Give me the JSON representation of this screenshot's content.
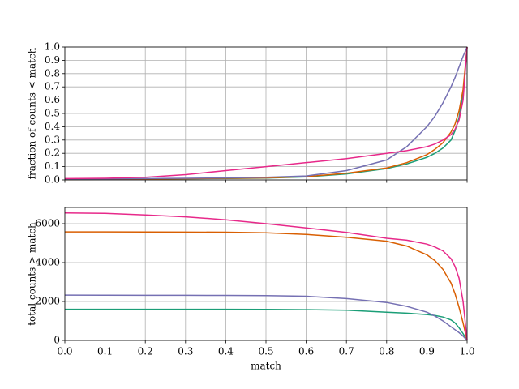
{
  "chart_data": [
    {
      "type": "line",
      "ylabel": "fraction of counts < match",
      "x": [
        0,
        0.1,
        0.2,
        0.3,
        0.4,
        0.5,
        0.6,
        0.7,
        0.8,
        0.85,
        0.9,
        0.92,
        0.94,
        0.96,
        0.97,
        0.98,
        0.99,
        1.0
      ],
      "series": [
        {
          "color": "#1b9e77",
          "values": [
            0.003,
            0.005,
            0.007,
            0.009,
            0.011,
            0.014,
            0.023,
            0.045,
            0.085,
            0.12,
            0.17,
            0.2,
            0.24,
            0.3,
            0.37,
            0.47,
            0.65,
            1.0
          ]
        },
        {
          "color": "#d95f02",
          "values": [
            0.003,
            0.005,
            0.007,
            0.009,
            0.012,
            0.015,
            0.025,
            0.05,
            0.09,
            0.13,
            0.19,
            0.23,
            0.28,
            0.36,
            0.42,
            0.52,
            0.68,
            1.0
          ]
        },
        {
          "color": "#7570b3",
          "values": [
            0.005,
            0.008,
            0.01,
            0.012,
            0.015,
            0.02,
            0.03,
            0.07,
            0.15,
            0.25,
            0.4,
            0.48,
            0.58,
            0.7,
            0.77,
            0.85,
            0.93,
            1.0
          ]
        },
        {
          "color": "#e7298a",
          "values": [
            0.01,
            0.012,
            0.02,
            0.04,
            0.07,
            0.1,
            0.13,
            0.16,
            0.2,
            0.22,
            0.25,
            0.27,
            0.3,
            0.34,
            0.38,
            0.45,
            0.6,
            1.0
          ]
        }
      ],
      "xlim": [
        0,
        1
      ],
      "xticks": [
        0,
        0.1,
        0.2,
        0.3,
        0.4,
        0.5,
        0.6,
        0.7,
        0.8,
        0.9,
        1
      ],
      "ylim": [
        0,
        1
      ],
      "yticks": [
        {
          "value": 0,
          "label": "0.0"
        },
        0.1,
        0.2,
        0.3,
        0.4,
        0.5,
        0.6,
        0.7,
        0.8,
        0.9,
        {
          "value": 1,
          "label": "1.0"
        }
      ],
      "grid": true
    },
    {
      "type": "line",
      "ylabel": "total counts > match",
      "xlabel": "match",
      "x": [
        0,
        0.1,
        0.2,
        0.3,
        0.4,
        0.5,
        0.6,
        0.7,
        0.8,
        0.85,
        0.9,
        0.92,
        0.94,
        0.96,
        0.97,
        0.98,
        0.99,
        1.0
      ],
      "series": [
        {
          "color": "#1b9e77",
          "values": [
            1600,
            1600,
            1600,
            1600,
            1600,
            1595,
            1580,
            1550,
            1450,
            1400,
            1330,
            1280,
            1200,
            1050,
            900,
            650,
            350,
            0
          ]
        },
        {
          "color": "#d95f02",
          "values": [
            5580,
            5580,
            5575,
            5570,
            5560,
            5530,
            5450,
            5300,
            5100,
            4850,
            4400,
            4100,
            3650,
            2950,
            2400,
            1700,
            900,
            0
          ]
        },
        {
          "color": "#7570b3",
          "values": [
            2330,
            2325,
            2320,
            2315,
            2310,
            2300,
            2270,
            2150,
            1950,
            1750,
            1450,
            1250,
            1000,
            700,
            550,
            400,
            220,
            0
          ]
        },
        {
          "color": "#e7298a",
          "values": [
            6550,
            6530,
            6450,
            6350,
            6200,
            6000,
            5780,
            5550,
            5250,
            5150,
            4950,
            4800,
            4600,
            4200,
            3800,
            3200,
            2000,
            0
          ]
        }
      ],
      "xlim": [
        0,
        1
      ],
      "xticks": [
        {
          "value": 0,
          "label": "0.0"
        },
        0.1,
        0.2,
        0.3,
        0.4,
        0.5,
        0.6,
        0.7,
        0.8,
        0.9,
        {
          "value": 1,
          "label": "1.0"
        }
      ],
      "ylim": [
        0,
        6833
      ],
      "yticks": [
        0,
        2000,
        4000,
        6000
      ],
      "grid": true
    }
  ]
}
